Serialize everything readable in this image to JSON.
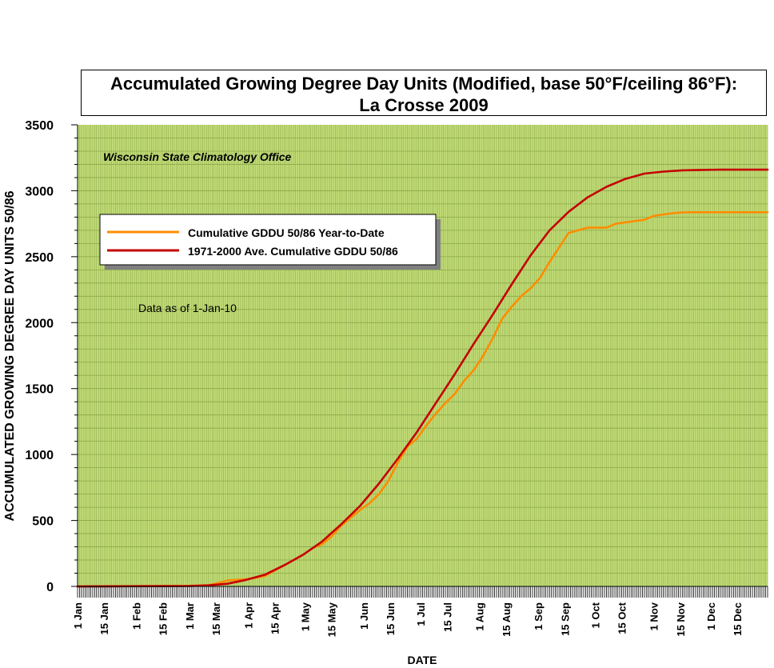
{
  "chart_data": {
    "type": "line",
    "title": "Accumulated Growing Degree Day Units (Modified, base 50°F/ceiling 86°F):",
    "subtitle": "La Crosse 2009",
    "xlabel": "DATE",
    "ylabel": "ACCUMULATED GROWING DEGREE DAY UNITS 50/86",
    "ylim": [
      0,
      3500
    ],
    "y_ticks": [
      "0",
      "500",
      "1000",
      "1500",
      "2000",
      "2500",
      "3000",
      "3500"
    ],
    "x_tick_labels": [
      {
        "label": "1 Jan",
        "day": 1
      },
      {
        "label": "15 Jan",
        "day": 15
      },
      {
        "label": "1 Feb",
        "day": 32
      },
      {
        "label": "15 Feb",
        "day": 46
      },
      {
        "label": "1 Mar",
        "day": 60
      },
      {
        "label": "15 Mar",
        "day": 74
      },
      {
        "label": "1 Apr",
        "day": 91
      },
      {
        "label": "15 Apr",
        "day": 105
      },
      {
        "label": "1 May",
        "day": 121
      },
      {
        "label": "15 May",
        "day": 135
      },
      {
        "label": "1 Jun",
        "day": 152
      },
      {
        "label": "15 Jun",
        "day": 166
      },
      {
        "label": "1 Jul",
        "day": 182
      },
      {
        "label": "15 Jul",
        "day": 196
      },
      {
        "label": "1 Aug",
        "day": 213
      },
      {
        "label": "15 Aug",
        "day": 227
      },
      {
        "label": "1 Sep",
        "day": 244
      },
      {
        "label": "15 Sep",
        "day": 258
      },
      {
        "label": "1 Oct",
        "day": 274
      },
      {
        "label": "15 Oct",
        "day": 288
      },
      {
        "label": "1 Nov",
        "day": 305
      },
      {
        "label": "15 Nov",
        "day": 319
      },
      {
        "label": "1 Dec",
        "day": 335
      },
      {
        "label": "15 Dec",
        "day": 349
      }
    ],
    "xlim": [
      1,
      365
    ],
    "grid": true,
    "legend_position": "upper-left",
    "annotations": [
      "Wisconsin State Climatology Office",
      "Data as of 1-Jan-10"
    ],
    "colors": {
      "plot_bg": "#c6e07a",
      "grid": "#8aa84a",
      "ytd": "#ff8c00",
      "avg": "#c40000"
    },
    "series": [
      {
        "name": "Cumulative GDDU 50/86 Year-to-Date",
        "color": "#ff8c00",
        "x": [
          1,
          60,
          70,
          75,
          80,
          85,
          90,
          95,
          100,
          105,
          110,
          115,
          120,
          125,
          130,
          135,
          140,
          145,
          150,
          155,
          160,
          165,
          170,
          175,
          180,
          185,
          190,
          195,
          200,
          205,
          210,
          215,
          220,
          225,
          230,
          235,
          240,
          245,
          250,
          255,
          260,
          265,
          270,
          275,
          280,
          285,
          290,
          295,
          300,
          305,
          310,
          315,
          320,
          325,
          330,
          335,
          345,
          365
        ],
        "values": [
          0,
          5,
          10,
          25,
          45,
          50,
          55,
          65,
          80,
          120,
          160,
          200,
          240,
          290,
          320,
          380,
          460,
          520,
          580,
          630,
          700,
          800,
          940,
          1060,
          1120,
          1220,
          1310,
          1390,
          1460,
          1560,
          1640,
          1750,
          1880,
          2030,
          2120,
          2200,
          2260,
          2340,
          2460,
          2570,
          2680,
          2700,
          2720,
          2720,
          2720,
          2750,
          2760,
          2770,
          2780,
          2810,
          2820,
          2830,
          2835,
          2837,
          2837,
          2837,
          2837,
          2837
        ]
      },
      {
        "name": "1971-2000 Ave. Cumulative GDDU 50/86",
        "color": "#c40000",
        "x": [
          1,
          60,
          70,
          80,
          90,
          100,
          110,
          120,
          130,
          140,
          150,
          160,
          170,
          180,
          190,
          200,
          210,
          220,
          230,
          240,
          250,
          260,
          270,
          280,
          290,
          300,
          310,
          320,
          330,
          340,
          350,
          365
        ],
        "values": [
          0,
          3,
          8,
          20,
          50,
          90,
          160,
          240,
          340,
          470,
          610,
          780,
          970,
          1170,
          1390,
          1610,
          1840,
          2060,
          2290,
          2510,
          2700,
          2840,
          2950,
          3030,
          3090,
          3130,
          3145,
          3155,
          3158,
          3160,
          3160,
          3160
        ]
      }
    ]
  }
}
